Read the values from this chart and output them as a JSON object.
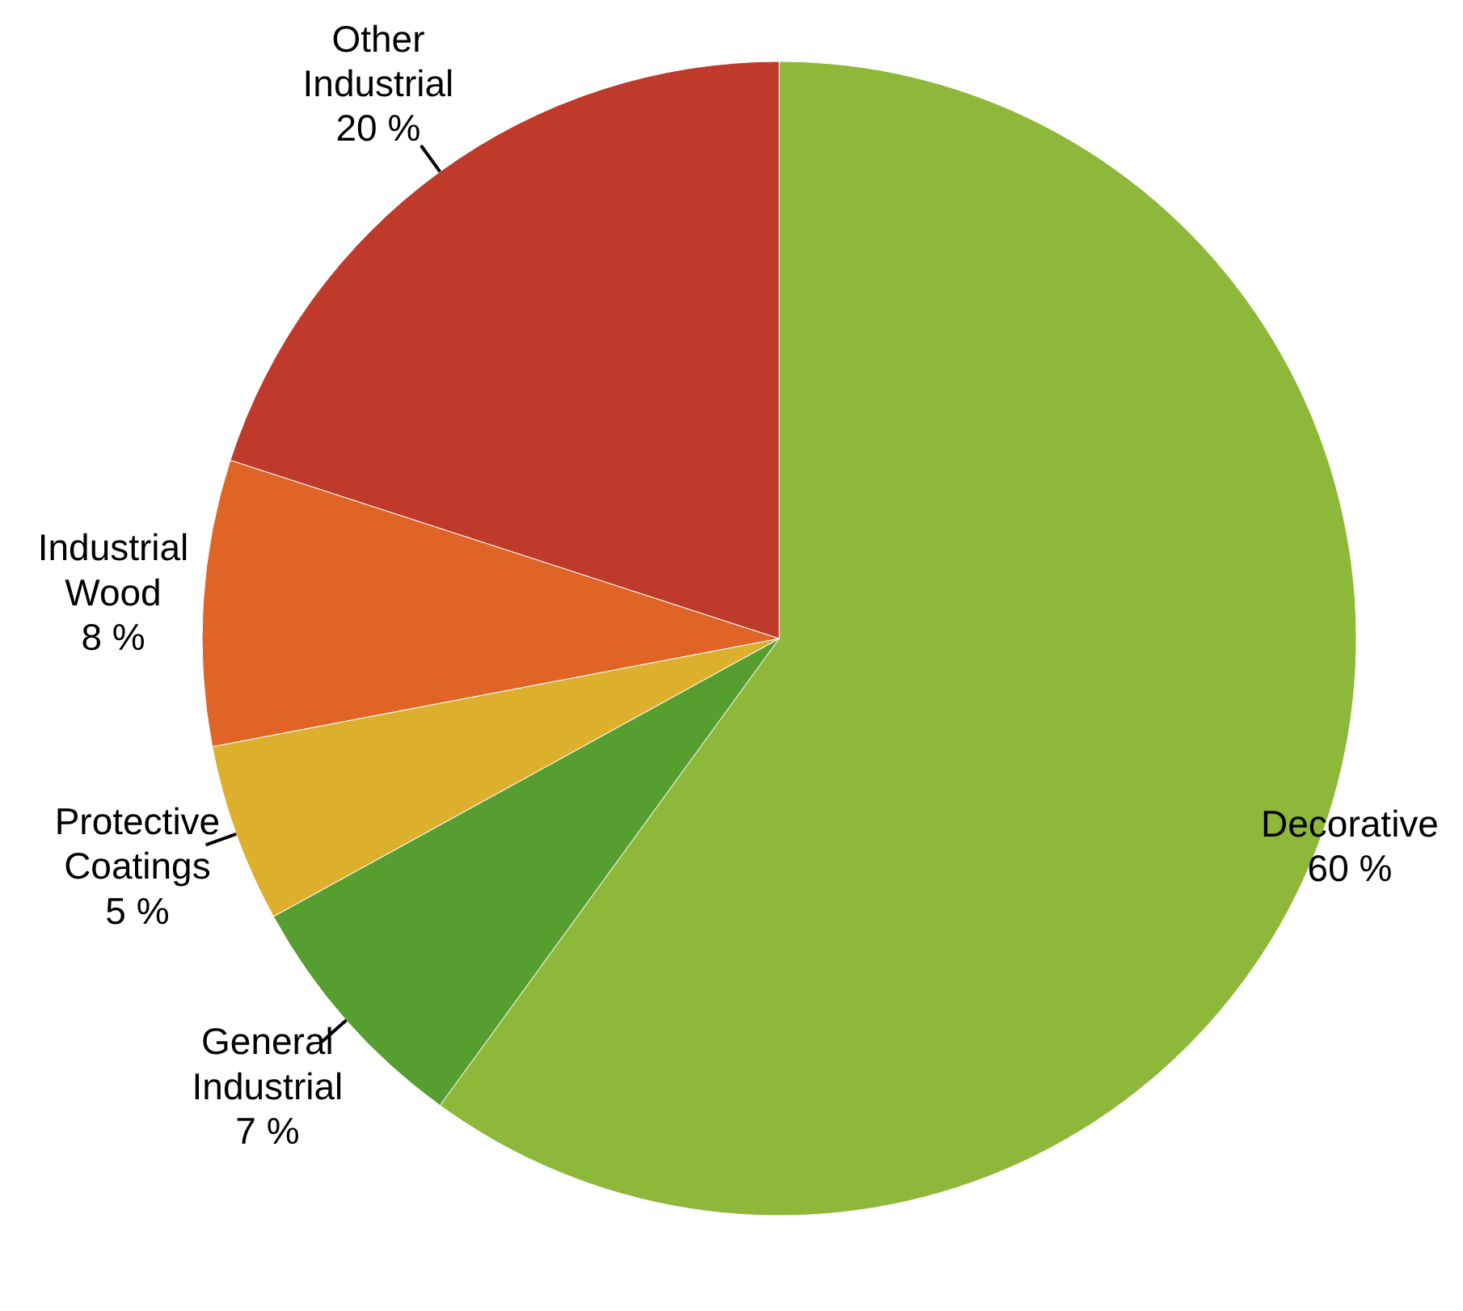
{
  "chart_data": {
    "type": "pie",
    "categories": [
      "Decorative",
      "General Industrial",
      "Protective Coatings",
      "Industrial Wood",
      "Other Industrial"
    ],
    "values": [
      60,
      7,
      5,
      8,
      20
    ],
    "colors": [
      "#8db83a",
      "#579e30",
      "#dcb02c",
      "#df6426",
      "#c03a2c"
    ],
    "value_labels": [
      "60 %",
      "7 %",
      "5 %",
      "8 %",
      "20 %"
    ]
  }
}
